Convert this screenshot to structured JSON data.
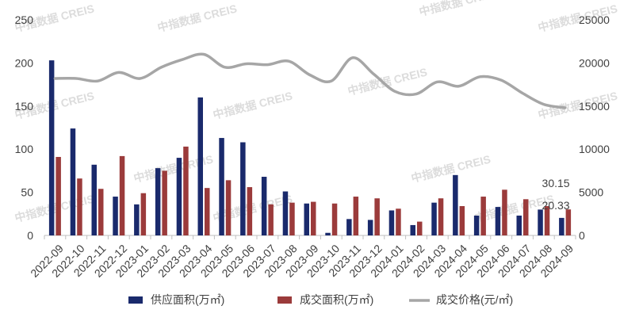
{
  "chart_data": {
    "type": "bar",
    "categories": [
      "2022-09",
      "2022-10",
      "2022-11",
      "2022-12",
      "2023-01",
      "2023-02",
      "2023-03",
      "2023-04",
      "2023-05",
      "2023-06",
      "2023-07",
      "2023-08",
      "2023-09",
      "2023-10",
      "2023-11",
      "2023-12",
      "2024-01",
      "2024-02",
      "2024-03",
      "2024-04",
      "2024-05",
      "2024-06",
      "2024-07",
      "2024-08",
      "2024-09"
    ],
    "series": [
      {
        "name": "供应面积(万㎡)",
        "type": "bar",
        "axis": "left",
        "color": "#1a2a6c",
        "values": [
          203,
          124,
          82,
          45,
          36,
          78,
          90,
          160,
          113,
          108,
          68,
          51,
          37,
          3,
          19,
          18,
          29,
          12,
          38,
          70,
          23,
          33,
          23,
          30,
          20.33
        ]
      },
      {
        "name": "成交面积(万㎡)",
        "type": "bar",
        "axis": "left",
        "color": "#9b3b3b",
        "values": [
          91,
          66,
          54,
          92,
          49,
          75,
          103,
          55,
          64,
          56,
          36,
          38,
          39,
          37,
          45,
          43,
          31,
          16,
          43,
          34,
          45,
          53,
          42,
          34,
          30.15
        ]
      },
      {
        "name": "成交价格(元/㎡)",
        "type": "line",
        "axis": "right",
        "color": "#a6a6a6",
        "values": [
          18200,
          18200,
          17900,
          18900,
          18200,
          19500,
          20400,
          21000,
          19500,
          19900,
          19800,
          20200,
          18600,
          17900,
          20600,
          18700,
          16700,
          16400,
          17800,
          17300,
          18400,
          18000,
          16500,
          15200,
          14800
        ]
      }
    ],
    "left_axis": {
      "ylim": [
        0,
        250
      ],
      "ticks": [
        0,
        50,
        100,
        150,
        200,
        250
      ]
    },
    "right_axis": {
      "ylim": [
        0,
        25000
      ],
      "ticks": [
        0,
        5000,
        10000,
        15000,
        20000,
        25000
      ]
    },
    "data_labels": [
      {
        "text": "30.15",
        "category": "2024-09",
        "series": "成交面积(万㎡)"
      },
      {
        "text": "20.33",
        "category": "2024-09",
        "series": "供应面积(万㎡)"
      }
    ],
    "legend": {
      "placement": "bottom"
    },
    "grid": false,
    "watermark": "中指数据 CREIS"
  }
}
